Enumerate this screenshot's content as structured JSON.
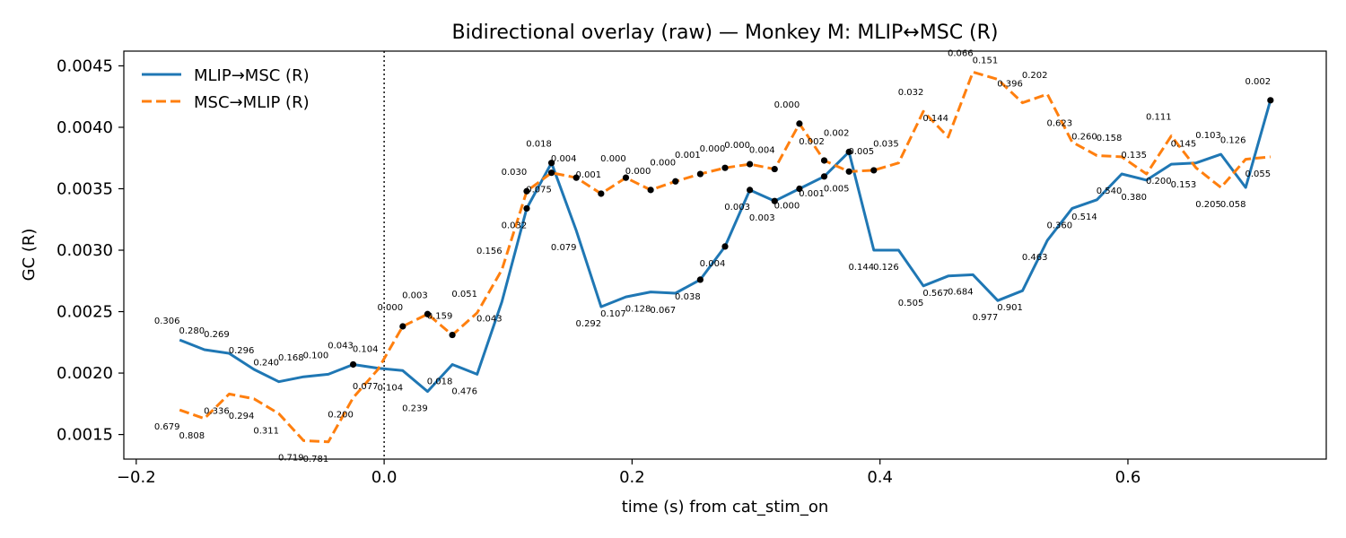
{
  "chart_data": {
    "type": "line",
    "title": "Bidirectional overlay (raw) — Monkey M: MLIP↔MSC (R)",
    "xlabel": "time (s) from cat_stim_on",
    "ylabel": "GC (R)",
    "xlim": [
      -0.21,
      0.76
    ],
    "ylim": [
      0.0013,
      0.00462
    ],
    "xticks": [
      -0.2,
      0.0,
      0.2,
      0.4,
      0.6
    ],
    "xtick_labels": [
      "−0.2",
      "0.0",
      "0.2",
      "0.4",
      "0.6"
    ],
    "yticks": [
      0.0015,
      0.002,
      0.0025,
      0.003,
      0.0035,
      0.004,
      0.0045
    ],
    "ytick_labels": [
      "0.0015",
      "0.0020",
      "0.0025",
      "0.0030",
      "0.0035",
      "0.0040",
      "0.0045"
    ],
    "event_line": {
      "x": 0.0,
      "style": "dotted"
    },
    "legend_position": "top-left",
    "x": [
      -0.165,
      -0.145,
      -0.125,
      -0.105,
      -0.085,
      -0.065,
      -0.045,
      -0.025,
      -0.005,
      0.015,
      0.035,
      0.055,
      0.075,
      0.095,
      0.115,
      0.135,
      0.155,
      0.175,
      0.195,
      0.215,
      0.235,
      0.255,
      0.275,
      0.295,
      0.315,
      0.335,
      0.355,
      0.375,
      0.395,
      0.415,
      0.435,
      0.455,
      0.475,
      0.495,
      0.515,
      0.535,
      0.555,
      0.575,
      0.595,
      0.615,
      0.635,
      0.655,
      0.675,
      0.695,
      0.715
    ],
    "series": [
      {
        "name": "MLIP→MSC (R)",
        "color": "#1f77b4",
        "dash": "solid",
        "values": [
          0.00227,
          0.00219,
          0.00216,
          0.00203,
          0.00193,
          0.00197,
          0.00199,
          0.00207,
          0.00204,
          0.00202,
          0.00185,
          0.00207,
          0.00199,
          0.00258,
          0.00334,
          0.00371,
          0.00316,
          0.00254,
          0.00262,
          0.00266,
          0.00265,
          0.00276,
          0.00303,
          0.00349,
          0.0034,
          0.0035,
          0.0036,
          0.0038,
          0.003,
          0.003,
          0.00271,
          0.00279,
          0.0028,
          0.00259,
          0.00267,
          0.00308,
          0.00334,
          0.00341,
          0.00362,
          0.00357,
          0.0037,
          0.00371,
          0.00378,
          0.00351,
          0.00422
        ],
        "pvalues": [
          "0.306",
          "0.280",
          "0.269",
          "0.296",
          "0.240",
          "0.168",
          "0.100",
          "0.043",
          "0.104",
          "0.104",
          "0.239",
          "0.018",
          "0.476",
          "0.043",
          "0.032",
          "0.018",
          "0.079",
          "0.292",
          "0.107",
          "0.128",
          "0.067",
          "0.038",
          "0.004",
          "0.003",
          "0.003",
          "0.000",
          "0.001",
          "0.002",
          "0.144",
          "0.126",
          "0.505",
          "0.567",
          "0.684",
          "0.977",
          "0.901",
          "0.463",
          "0.360",
          "0.514",
          "0.540",
          "0.380",
          "0.200",
          "0.145",
          "0.103",
          "0.058",
          "0.002"
        ],
        "significant": [
          false,
          false,
          false,
          false,
          false,
          false,
          false,
          true,
          false,
          false,
          false,
          false,
          false,
          false,
          true,
          true,
          false,
          false,
          false,
          false,
          false,
          true,
          true,
          true,
          true,
          true,
          true,
          true,
          false,
          false,
          false,
          false,
          false,
          false,
          false,
          false,
          false,
          false,
          false,
          false,
          false,
          false,
          false,
          false,
          true
        ]
      },
      {
        "name": "MSC→MLIP (R)",
        "color": "#ff7f0e",
        "dash": "dashed",
        "values": [
          0.0017,
          0.00163,
          0.00183,
          0.00179,
          0.00167,
          0.00145,
          0.00144,
          0.0018,
          0.00203,
          0.00238,
          0.00248,
          0.00231,
          0.00249,
          0.00284,
          0.00348,
          0.00363,
          0.00359,
          0.00346,
          0.00359,
          0.00349,
          0.00356,
          0.00362,
          0.00367,
          0.0037,
          0.00366,
          0.00403,
          0.00373,
          0.00364,
          0.00365,
          0.00371,
          0.00413,
          0.00392,
          0.00445,
          0.00439,
          0.0042,
          0.00427,
          0.00388,
          0.00377,
          0.00376,
          0.00362,
          0.00393,
          0.00367,
          0.00351,
          0.00374,
          0.00376
        ],
        "pvalues": [
          "0.679",
          "0.808",
          "0.336",
          "0.294",
          "0.311",
          "0.719",
          "0.781",
          "0.200",
          "0.077",
          "0.000",
          "0.003",
          "0.159",
          "0.051",
          "0.156",
          "0.030",
          "0.075",
          "0.004",
          "0.001",
          "0.000",
          "0.000",
          "0.000",
          "0.001",
          "0.000",
          "0.000",
          "0.004",
          "0.000",
          "0.002",
          "0.005",
          "0.005",
          "0.035",
          "0.032",
          "0.144",
          "0.066",
          "0.151",
          "0.396",
          "0.202",
          "0.623",
          "0.260",
          "0.158",
          "0.135",
          "0.111",
          "0.153",
          "0.205",
          "0.126",
          "0.055"
        ],
        "significant": [
          false,
          false,
          false,
          false,
          false,
          false,
          false,
          false,
          false,
          true,
          true,
          true,
          false,
          false,
          true,
          true,
          true,
          true,
          true,
          true,
          true,
          true,
          true,
          true,
          true,
          true,
          true,
          true,
          true,
          false,
          false,
          false,
          false,
          false,
          false,
          false,
          false,
          false,
          false,
          false,
          false,
          false,
          false,
          false,
          false
        ]
      }
    ]
  }
}
